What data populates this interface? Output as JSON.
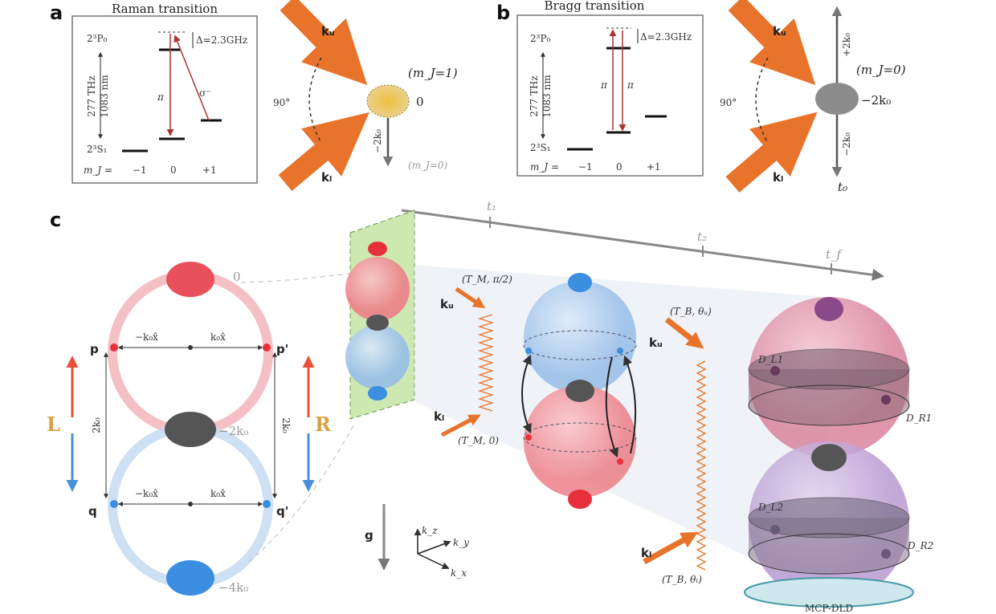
{
  "panels": {
    "a": {
      "label": "a",
      "title": "Raman transition",
      "upper_state": "2³P₀",
      "lower_state": "2³S₁",
      "frequency": "277 THz",
      "wavelength": "1083 nm",
      "detuning": "Δ=2.3GHz",
      "pi_label": "π",
      "sigma_label": "σ⁻",
      "mj_prefix": "m_J =",
      "mj_values": [
        "−1",
        "0",
        "+1"
      ],
      "beam_upper": "kᵤ",
      "beam_lower": "kₗ",
      "angle": "90°",
      "state_top": "(m_J=1)",
      "momentum_top": "0",
      "kick": "−2k₀",
      "state_bottom": "(m_J=0)"
    },
    "b": {
      "label": "b",
      "title": "Bragg transition",
      "upper_state": "2³P₀",
      "lower_state": "2³S₁",
      "frequency": "277 THz",
      "wavelength": "1083 nm",
      "detuning": "Δ=2.3GHz",
      "pi_label": "π",
      "mj_prefix": "m_J =",
      "mj_values": [
        "−1",
        "0",
        "+1"
      ],
      "beam_upper": "kᵤ",
      "beam_lower": "kₗ",
      "angle": "90°",
      "state": "(m_J=0)",
      "momentum": "−2k₀",
      "kick_up": "+2k₀",
      "kick_down": "−2k₀",
      "time": "t₀"
    },
    "c": {
      "label": "c",
      "times": [
        "t₁",
        "t₂",
        "t_f"
      ],
      "momenta": [
        "0",
        "−2k₀",
        "−4k₀"
      ],
      "points": [
        "p",
        "p'",
        "q",
        "q'"
      ],
      "minus_k": "−k₀x̂",
      "plus_k": "k₀x̂",
      "two_k": "2k₀",
      "left": "L",
      "right": "R",
      "pulse1": "(T_M, π/2)",
      "pulse2": "(T_M, 0)",
      "pulse3": "(T_B, θᵤ)",
      "pulse4": "(T_B, θₗ)",
      "beam_upper": "kᵤ",
      "beam_lower": "kₗ",
      "gravity": "g",
      "axes": [
        "k_z",
        "k_y",
        "k_x"
      ],
      "detectors": [
        "D_L1",
        "D_R1",
        "D_L2",
        "D_R2"
      ],
      "detector_name": "MCP-DLD"
    }
  },
  "colors": {
    "beam": "#e8732a",
    "red": "#e8505b",
    "blue": "#4a90d9",
    "gray": "#666666",
    "gold": "#d9a520",
    "green": "#c8e6a8",
    "pink": "#d86a8a",
    "purple": "#9b7fb8"
  }
}
